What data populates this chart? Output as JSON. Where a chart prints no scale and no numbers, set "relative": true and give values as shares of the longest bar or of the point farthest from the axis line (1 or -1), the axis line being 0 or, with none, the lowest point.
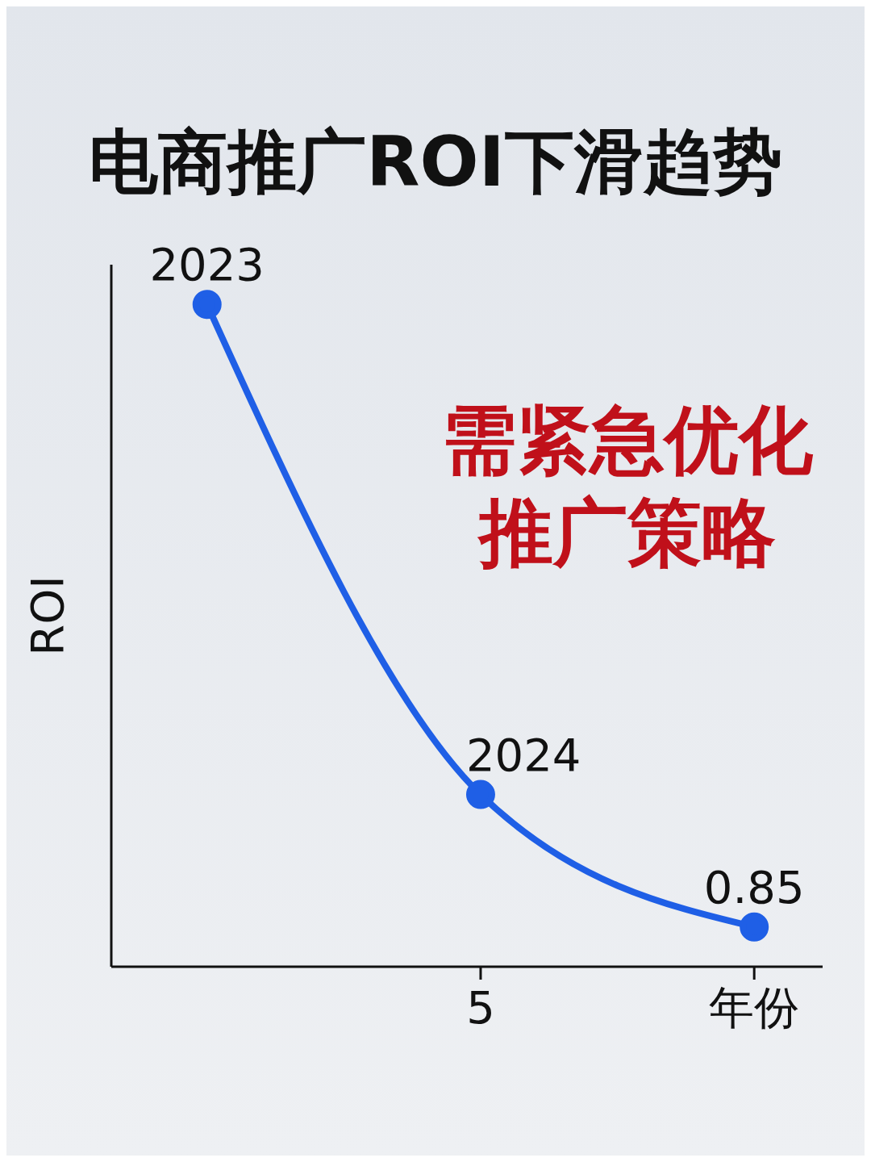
{
  "chart_data": {
    "type": "line",
    "title": "电商推广ROI下滑趋势",
    "ylabel": "ROI",
    "relative": true,
    "categories": [
      null,
      "5",
      "年份"
    ],
    "series": [
      {
        "color": "#1f5fe6",
        "values": [
          1,
          0.26,
          0.06
        ]
      }
    ],
    "marker": "circle",
    "grid": false,
    "legend": false,
    "annotations": [
      "需紧急优化推广策略",
      "2023",
      "2024",
      "0.85"
    ]
  }
}
